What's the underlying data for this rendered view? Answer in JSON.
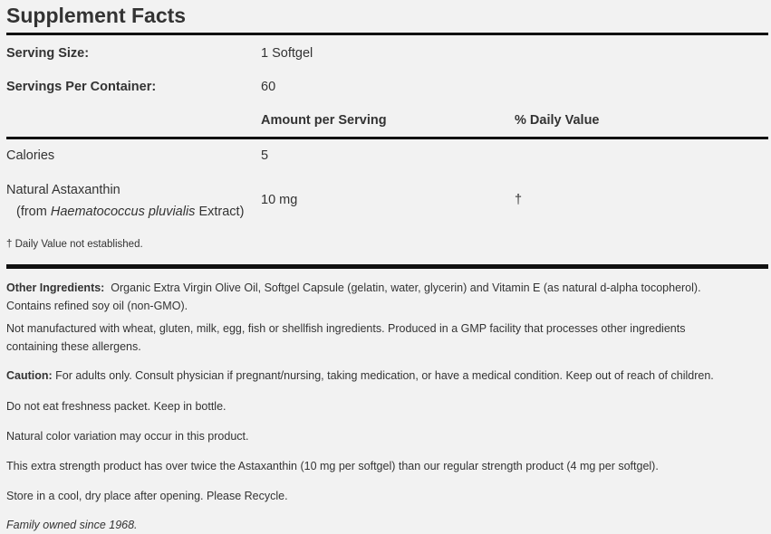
{
  "title": "Supplement Facts",
  "serving_size": {
    "label": "Serving Size:",
    "value": "1 Softgel"
  },
  "servings_per_container": {
    "label": "Servings Per Container:",
    "value": "60"
  },
  "headers": {
    "amount": "Amount per Serving",
    "daily_value": "% Daily Value"
  },
  "rows": [
    {
      "name": "Calories",
      "amount": "5",
      "dv": ""
    },
    {
      "name": "Natural Astaxanthin",
      "sub_prefix": "(from ",
      "sub_italic": "Haematococcus pluvialis",
      "sub_suffix": " Extract)",
      "amount": "10 mg",
      "dv": "†"
    }
  ],
  "footnote": "† Daily Value not established.",
  "other_ingredients": {
    "label": "Other Ingredients:",
    "line1": "Organic Extra Virgin Olive Oil, Softgel Capsule (gelatin, water, glycerin) and Vitamin E (as natural d-alpha tocopherol).",
    "line2": "Contains refined soy oil (non-GMO)."
  },
  "allergens": {
    "line1": "Not manufactured with wheat, gluten, milk, egg, fish or shellfish ingredients. Produced in a GMP facility that processes other ingredients",
    "line2": "containing these allergens."
  },
  "caution": {
    "label": "Caution:",
    "text": "For adults only. Consult physician if pregnant/nursing, taking medication, or have a medical condition. Keep out of reach of children."
  },
  "notes": [
    "Do not eat freshness packet. Keep in bottle.",
    "Natural color variation may occur in this product.",
    "This extra strength product has over twice the Astaxanthin (10 mg per softgel) than our regular strength product (4 mg per softgel).",
    "Store in a cool, dry place after opening. Please Recycle."
  ],
  "family": "Family owned since 1968."
}
